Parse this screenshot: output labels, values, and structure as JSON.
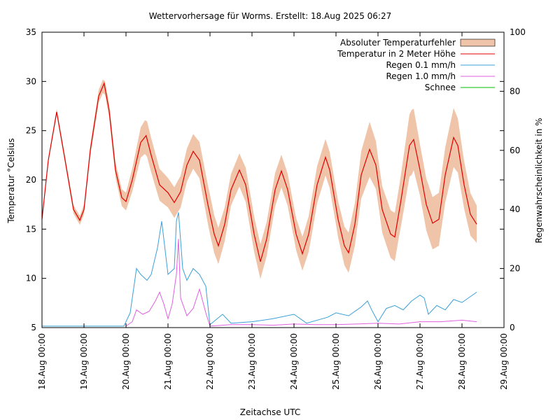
{
  "chart_data": {
    "type": "line",
    "title": "Wettervorhersage für Worms. Erstellt: 18.Aug 2025 06:27",
    "xlabel": "Zeitachse UTC",
    "ylabel": "Temperatur °Celsius",
    "y2label": "Regenwahrscheinlichkeit in %",
    "xticks": [
      "18.Aug 00:00",
      "19.Aug 00:00",
      "20.Aug 00:00",
      "21.Aug 00:00",
      "22.Aug 00:00",
      "23.Aug 00:00",
      "24.Aug 00:00",
      "25.Aug 00:00",
      "26.Aug 00:00",
      "27.Aug 00:00",
      "28.Aug 00:00",
      "29.Aug 00:00"
    ],
    "xlim_days": [
      0,
      11
    ],
    "ylim": [
      5,
      35
    ],
    "yticks": [
      5,
      10,
      15,
      20,
      25,
      30,
      35
    ],
    "y2lim": [
      0,
      100
    ],
    "y2ticks": [
      0,
      20,
      40,
      60,
      80,
      100
    ],
    "grid": false,
    "legend": {
      "placement": "top-right",
      "entries": [
        {
          "label": "Absoluter Temperaturfehler",
          "color": "#f0c4a8",
          "kind": "band"
        },
        {
          "label": "Temperatur in 2 Meter Höhe",
          "color": "#e00000",
          "kind": "line"
        },
        {
          "label": "Regen 0.1 mm/h",
          "color": "#3aa0d8",
          "kind": "line"
        },
        {
          "label": "Regen 1.0 mm/h",
          "color": "#e060e0",
          "kind": "line"
        },
        {
          "label": "Schnee",
          "color": "#00c000",
          "kind": "line"
        }
      ]
    },
    "temperature": {
      "name": "Temperatur in 2 Meter Höhe",
      "points": [
        [
          0.0,
          16.0
        ],
        [
          0.15,
          22.0
        ],
        [
          0.35,
          26.9
        ],
        [
          0.55,
          22.0
        ],
        [
          0.75,
          17.0
        ],
        [
          0.9,
          15.9
        ],
        [
          1.0,
          17.0
        ],
        [
          1.15,
          23.0
        ],
        [
          1.35,
          28.5
        ],
        [
          1.48,
          29.8
        ],
        [
          1.6,
          27.0
        ],
        [
          1.75,
          21.0
        ],
        [
          1.9,
          18.2
        ],
        [
          2.0,
          17.8
        ],
        [
          2.15,
          20.0
        ],
        [
          2.35,
          23.8
        ],
        [
          2.48,
          24.5
        ],
        [
          2.6,
          22.5
        ],
        [
          2.8,
          19.5
        ],
        [
          3.0,
          18.7
        ],
        [
          3.15,
          17.7
        ],
        [
          3.3,
          18.8
        ],
        [
          3.45,
          21.5
        ],
        [
          3.6,
          22.9
        ],
        [
          3.75,
          22.0
        ],
        [
          3.95,
          17.5
        ],
        [
          4.1,
          14.5
        ],
        [
          4.2,
          13.3
        ],
        [
          4.35,
          15.5
        ],
        [
          4.5,
          19.0
        ],
        [
          4.7,
          21.0
        ],
        [
          4.85,
          19.5
        ],
        [
          5.05,
          14.5
        ],
        [
          5.2,
          11.7
        ],
        [
          5.35,
          14.0
        ],
        [
          5.55,
          19.0
        ],
        [
          5.7,
          20.9
        ],
        [
          5.85,
          19.0
        ],
        [
          6.05,
          14.5
        ],
        [
          6.2,
          12.5
        ],
        [
          6.35,
          14.5
        ],
        [
          6.55,
          19.5
        ],
        [
          6.75,
          22.3
        ],
        [
          6.85,
          21.0
        ],
        [
          7.05,
          16.0
        ],
        [
          7.2,
          13.3
        ],
        [
          7.3,
          12.6
        ],
        [
          7.45,
          15.5
        ],
        [
          7.6,
          20.5
        ],
        [
          7.8,
          23.1
        ],
        [
          7.95,
          21.5
        ],
        [
          8.1,
          17.0
        ],
        [
          8.3,
          14.5
        ],
        [
          8.4,
          14.2
        ],
        [
          8.55,
          18.0
        ],
        [
          8.75,
          23.5
        ],
        [
          8.85,
          24.1
        ],
        [
          9.0,
          21.0
        ],
        [
          9.15,
          17.5
        ],
        [
          9.3,
          15.6
        ],
        [
          9.45,
          16.0
        ],
        [
          9.6,
          20.5
        ],
        [
          9.8,
          24.3
        ],
        [
          9.9,
          23.5
        ],
        [
          10.05,
          19.5
        ],
        [
          10.2,
          16.5
        ],
        [
          10.35,
          15.5
        ]
      ]
    },
    "temperature_error": {
      "name": "Absoluter Temperaturfehler",
      "halfwidth": [
        [
          0.0,
          0.2
        ],
        [
          1.0,
          0.5
        ],
        [
          1.5,
          0.7
        ],
        [
          2.0,
          0.9
        ],
        [
          2.5,
          1.8
        ],
        [
          3.0,
          1.5
        ],
        [
          3.5,
          1.7
        ],
        [
          4.0,
          2.0
        ],
        [
          4.5,
          1.6
        ],
        [
          5.0,
          1.8
        ],
        [
          5.5,
          1.7
        ],
        [
          6.0,
          1.6
        ],
        [
          6.5,
          1.9
        ],
        [
          7.0,
          1.8
        ],
        [
          7.5,
          2.2
        ],
        [
          7.8,
          2.8
        ],
        [
          8.0,
          2.3
        ],
        [
          8.5,
          2.5
        ],
        [
          8.8,
          3.3
        ],
        [
          9.0,
          2.6
        ],
        [
          9.5,
          2.7
        ],
        [
          9.8,
          3.0
        ],
        [
          10.0,
          2.5
        ],
        [
          10.35,
          1.9
        ]
      ]
    },
    "rain_01": {
      "name": "Regen 0.1 mm/h",
      "points": [
        [
          0.0,
          0.5
        ],
        [
          0.5,
          0.5
        ],
        [
          1.0,
          0.5
        ],
        [
          1.5,
          0.5
        ],
        [
          1.95,
          0.5
        ],
        [
          2.1,
          5.0
        ],
        [
          2.25,
          20.0
        ],
        [
          2.35,
          18.0
        ],
        [
          2.5,
          16.0
        ],
        [
          2.6,
          18.0
        ],
        [
          2.75,
          27.0
        ],
        [
          2.85,
          36.0
        ],
        [
          2.95,
          24.0
        ],
        [
          3.0,
          18.0
        ],
        [
          3.15,
          20.0
        ],
        [
          3.2,
          36.0
        ],
        [
          3.25,
          39.0
        ],
        [
          3.35,
          20.0
        ],
        [
          3.45,
          16.0
        ],
        [
          3.6,
          20.0
        ],
        [
          3.75,
          18.0
        ],
        [
          3.9,
          14.0
        ],
        [
          4.0,
          1.0
        ],
        [
          4.3,
          4.5
        ],
        [
          4.5,
          1.5
        ],
        [
          5.0,
          2.0
        ],
        [
          5.5,
          3.0
        ],
        [
          6.0,
          4.5
        ],
        [
          6.3,
          1.5
        ],
        [
          6.8,
          3.5
        ],
        [
          7.0,
          5.0
        ],
        [
          7.3,
          4.0
        ],
        [
          7.6,
          7.0
        ],
        [
          7.75,
          9.0
        ],
        [
          7.85,
          6.0
        ],
        [
          8.0,
          2.0
        ],
        [
          8.2,
          6.5
        ],
        [
          8.4,
          7.5
        ],
        [
          8.6,
          6.0
        ],
        [
          8.8,
          9.0
        ],
        [
          9.0,
          11.0
        ],
        [
          9.1,
          10.0
        ],
        [
          9.2,
          4.5
        ],
        [
          9.4,
          7.5
        ],
        [
          9.6,
          6.0
        ],
        [
          9.8,
          9.5
        ],
        [
          10.0,
          8.5
        ],
        [
          10.35,
          12.0
        ]
      ]
    },
    "rain_10": {
      "name": "Regen 1.0 mm/h",
      "points": [
        [
          2.0,
          0.5
        ],
        [
          2.15,
          2.0
        ],
        [
          2.25,
          6.0
        ],
        [
          2.4,
          4.5
        ],
        [
          2.55,
          5.5
        ],
        [
          2.7,
          9.0
        ],
        [
          2.8,
          12.0
        ],
        [
          2.9,
          8.0
        ],
        [
          3.0,
          3.0
        ],
        [
          3.1,
          8.0
        ],
        [
          3.2,
          18.0
        ],
        [
          3.25,
          30.0
        ],
        [
          3.3,
          10.0
        ],
        [
          3.45,
          4.0
        ],
        [
          3.6,
          6.5
        ],
        [
          3.75,
          13.0
        ],
        [
          3.9,
          5.0
        ],
        [
          4.0,
          0.5
        ],
        [
          4.5,
          1.0
        ],
        [
          5.0,
          1.0
        ],
        [
          5.5,
          0.8
        ],
        [
          6.0,
          1.2
        ],
        [
          6.5,
          1.0
        ],
        [
          7.0,
          1.0
        ],
        [
          7.5,
          1.2
        ],
        [
          8.0,
          1.5
        ],
        [
          8.5,
          1.2
        ],
        [
          9.0,
          2.0
        ],
        [
          9.5,
          2.0
        ],
        [
          10.0,
          2.5
        ],
        [
          10.35,
          2.0
        ]
      ]
    },
    "snow": {
      "name": "Schnee",
      "points": []
    }
  }
}
